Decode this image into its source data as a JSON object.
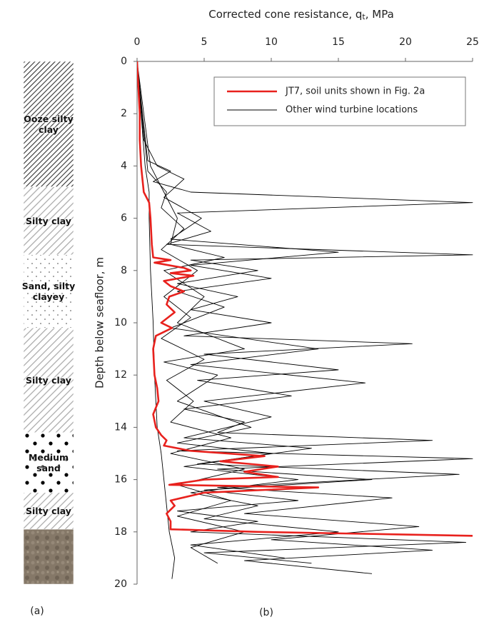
{
  "chart_data": {
    "type": "line",
    "orientation": "depth-profile",
    "xlabel": {
      "text": "Corrected cone resistance, q",
      "sub": "t",
      "tail": ", MPa"
    },
    "ylabel": "Depth below seafloor, m",
    "xlim": [
      0,
      25
    ],
    "xticks": [
      0,
      5,
      10,
      15,
      20,
      25
    ],
    "ylim": [
      0,
      20
    ],
    "yticks": [
      0,
      2,
      4,
      6,
      8,
      10,
      12,
      14,
      16,
      18,
      20
    ],
    "legend": "upper-right",
    "series": [
      {
        "name": "JT7, soil units shown in Fig. 2a",
        "color": "#e8211d",
        "width": 2.6,
        "depth": [
          0,
          1,
          2,
          3,
          4,
          5,
          5.4,
          6,
          7,
          7.5,
          7.6,
          7.7,
          7.9,
          8.0,
          8.1,
          8.2,
          8.4,
          8.6,
          8.8,
          9.0,
          9.3,
          9.6,
          10.0,
          10.2,
          10.5,
          11,
          12,
          12.5,
          13,
          13.5,
          14,
          14.3,
          14.5,
          14.7,
          14.9,
          15.1,
          15.3,
          15.5,
          15.7,
          15.9,
          16.0,
          16.2,
          16.3,
          16.5,
          16.8,
          17.0,
          17.3,
          17.6,
          17.9,
          18.0,
          18.15
        ],
        "values": [
          0,
          0.1,
          0.2,
          0.2,
          0.3,
          0.5,
          0.9,
          1.0,
          1.1,
          1.2,
          2.5,
          1.3,
          3.5,
          4.0,
          2.5,
          4.2,
          2.0,
          2.5,
          3.5,
          2.4,
          2.2,
          2.8,
          1.8,
          2.6,
          1.4,
          1.2,
          1.3,
          1.5,
          1.6,
          1.2,
          1.4,
          1.8,
          2.2,
          2.0,
          4.0,
          9.5,
          6.2,
          10.5,
          8.0,
          10.5,
          5.0,
          2.4,
          13.5,
          5.0,
          2.5,
          2.8,
          2.2,
          2.5,
          2.5,
          9.0,
          25
        ]
      },
      {
        "name": "Other wind turbine locations",
        "color": "#000000",
        "width": 0.9,
        "depth": [
          0,
          2,
          4,
          5,
          6,
          8,
          10,
          12,
          14,
          15,
          16,
          17,
          18,
          19,
          19.8
        ],
        "values": [
          0,
          0.3,
          0.6,
          0.9,
          0.9,
          1.0,
          1.2,
          1.3,
          1.5,
          1.8,
          2.0,
          2.2,
          2.4,
          2.8,
          2.6
        ]
      },
      {
        "color": "#000000",
        "width": 0.9,
        "depth": [
          0,
          2,
          3.8,
          4.2,
          4.6,
          5.0,
          5.4,
          5.8,
          6.5,
          7.0,
          7.4,
          7.6,
          8.0,
          8.5,
          9.0,
          9.5,
          10,
          10.5,
          10.8,
          11.2,
          11.8,
          12.2,
          12.8,
          13.3,
          13.8,
          14.2,
          14.5,
          14.9,
          15.2,
          15.6,
          16.0,
          16.4,
          16.8,
          17.2,
          17.6,
          18.0,
          18.4,
          18.8,
          19.2
        ],
        "values": [
          0,
          0.4,
          0.8,
          2.5,
          1.2,
          4.0,
          25,
          3.0,
          5.5,
          2.2,
          25,
          4.0,
          9.0,
          3.0,
          7.5,
          4.0,
          10.0,
          3.5,
          20.5,
          5.0,
          15.0,
          4.5,
          11.5,
          3.5,
          8.0,
          6.0,
          22.0,
          3.0,
          25,
          6.0,
          17.5,
          5.0,
          12.0,
          3.0,
          9.0,
          4.0,
          24.5,
          5.0,
          13.0
        ]
      },
      {
        "color": "#000000",
        "width": 0.9,
        "depth": [
          0,
          3,
          4,
          4.5,
          5.2,
          6.0,
          6.8,
          7.3,
          7.8,
          8.3,
          8.8,
          9.4,
          10.2,
          11.0,
          11.6,
          12.3,
          13.0,
          13.6,
          14.4,
          14.8,
          15.4,
          15.8,
          16.3,
          16.7,
          17.3,
          17.8,
          18.3,
          18.7,
          19.1,
          19.6
        ],
        "values": [
          0,
          0.5,
          1.5,
          3.5,
          2.0,
          4.8,
          2.5,
          15.0,
          4.0,
          10.0,
          3.0,
          6.5,
          2.5,
          13.5,
          4.0,
          17.0,
          5.0,
          10.0,
          3.5,
          13.0,
          4.5,
          24.0,
          6.0,
          19.0,
          8.0,
          21.0,
          10.0,
          22.0,
          8.0,
          17.5
        ]
      },
      {
        "color": "#000000",
        "width": 0.9,
        "depth": [
          0,
          4,
          5,
          6,
          7,
          7.5,
          8,
          9,
          10,
          11,
          11.5,
          12,
          13,
          14,
          14.6,
          15,
          15.5,
          16,
          16.5,
          17,
          17.5,
          18,
          18.5,
          19
        ],
        "values": [
          0,
          1,
          2,
          3,
          2.5,
          6.5,
          2,
          5,
          3,
          8,
          2,
          6,
          3,
          8.5,
          3,
          10,
          3.5,
          12,
          4,
          9,
          5,
          15,
          4,
          11
        ]
      },
      {
        "color": "#000000",
        "width": 0.9,
        "depth": [
          0,
          4.2,
          5,
          5.6,
          6.4,
          7.2,
          8,
          9,
          9.8,
          10.6,
          11.4,
          12.2,
          13,
          13.8,
          14.4,
          15,
          15.6,
          16.2,
          16.8,
          17.4,
          18,
          18.6,
          19.2
        ],
        "values": [
          0,
          0.8,
          2.2,
          1.8,
          3.5,
          1.8,
          4.5,
          2,
          4,
          1.8,
          5,
          2.2,
          4.2,
          2.5,
          7,
          2.5,
          8,
          3,
          7,
          3,
          8,
          4,
          6
        ]
      }
    ],
    "soil_column": [
      {
        "label": "Ooze silty clay",
        "top": 0,
        "bottom": 4.8,
        "pattern": "dense-hatch"
      },
      {
        "label": "Silty clay",
        "top": 4.8,
        "bottom": 7.4,
        "pattern": "hatch"
      },
      {
        "label": "Sand, silty clayey",
        "top": 7.4,
        "bottom": 10.2,
        "pattern": "fine-dots"
      },
      {
        "label": "Silty clay",
        "top": 10.2,
        "bottom": 14.2,
        "pattern": "hatch"
      },
      {
        "label": "Medium sand",
        "top": 14.2,
        "bottom": 16.5,
        "pattern": "coarse-dots"
      },
      {
        "label": "Silty clay",
        "top": 16.5,
        "bottom": 17.9,
        "pattern": "hatch"
      },
      {
        "top": 17.9,
        "bottom": 20,
        "pattern": "rock"
      }
    ],
    "panel_labels": [
      "(a)",
      "(b)"
    ]
  }
}
